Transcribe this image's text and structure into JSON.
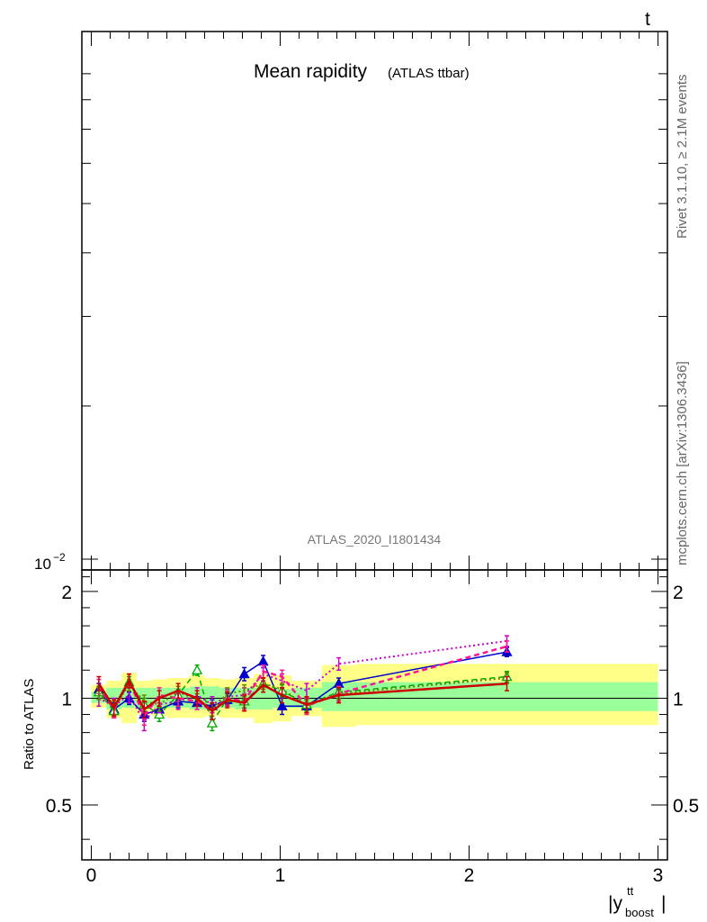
{
  "figure": {
    "title_main": "Mean rapidity",
    "title_sub": "(ATLAS ttbar)",
    "corner_label": "t",
    "watermark": "ATLAS_2020_I1801434",
    "side_text_top": "Rivet 3.1.10, ≥ 2.1M events",
    "side_text_bottom": "mcplots.cern.ch [arXiv:1306.3436]",
    "main_y_tick": "10",
    "main_y_tick_exp": "−2"
  },
  "chart_data": [
    {
      "panel": "main",
      "type": "line",
      "y_scale": "log",
      "x_range": [
        -0.05,
        3.05
      ],
      "y_ticks": [
        0.01
      ],
      "series": []
    },
    {
      "panel": "ratio",
      "type": "line",
      "ylabel": "Ratio to ATLAS",
      "xlabel": "|y",
      "xlabel_sup": "tt",
      "xlabel_sub": "boost",
      "xlabel_close": "|",
      "x_range": [
        -0.05,
        3.05
      ],
      "y_range": [
        0.35,
        2.3
      ],
      "x_ticks": [
        0,
        1,
        2,
        3
      ],
      "x_tick_labels": [
        "0",
        "1",
        "2",
        "3"
      ],
      "y_ticks": [
        0.5,
        1,
        2
      ],
      "y_tick_labels": [
        "0.5",
        "1",
        "2"
      ],
      "bin_edges": [
        0,
        0.08,
        0.16,
        0.24,
        0.32,
        0.4,
        0.52,
        0.6,
        0.68,
        0.76,
        0.86,
        0.96,
        1.06,
        1.22,
        1.4,
        3.0
      ],
      "band_inner": [
        [
          0.97,
          1.04
        ],
        [
          0.93,
          1.07
        ],
        [
          0.94,
          1.07
        ],
        [
          0.94,
          1.07
        ],
        [
          0.94,
          1.07
        ],
        [
          0.94,
          1.07
        ],
        [
          0.93,
          1.08
        ],
        [
          0.93,
          1.08
        ],
        [
          0.94,
          1.07
        ],
        [
          0.93,
          1.07
        ],
        [
          0.93,
          1.07
        ],
        [
          0.94,
          1.06
        ],
        [
          0.94,
          1.07
        ],
        [
          0.92,
          1.11
        ],
        [
          0.92,
          1.11
        ]
      ],
      "band_outer": [
        [
          0.94,
          1.09
        ],
        [
          0.88,
          1.12
        ],
        [
          0.85,
          1.18
        ],
        [
          0.9,
          1.12
        ],
        [
          0.89,
          1.13
        ],
        [
          0.88,
          1.14
        ],
        [
          0.88,
          1.16
        ],
        [
          0.89,
          1.14
        ],
        [
          0.88,
          1.13
        ],
        [
          0.88,
          1.14
        ],
        [
          0.85,
          1.17
        ],
        [
          0.86,
          1.16
        ],
        [
          0.89,
          1.12
        ],
        [
          0.83,
          1.24
        ],
        [
          0.84,
          1.25
        ]
      ],
      "x_points": [
        0.04,
        0.12,
        0.2,
        0.28,
        0.36,
        0.46,
        0.56,
        0.64,
        0.72,
        0.81,
        0.91,
        1.01,
        1.14,
        1.31,
        2.2
      ],
      "series": [
        {
          "color": "#0000cc",
          "dash": "none",
          "width": 1.5,
          "marker": "triangle-filled",
          "values": [
            1.06,
            0.93,
            1.0,
            0.9,
            0.93,
            0.98,
            0.97,
            0.95,
            0.99,
            1.17,
            1.27,
            0.95,
            0.95,
            1.1,
            1.35
          ],
          "errors": [
            0.04,
            0.04,
            0.04,
            0.04,
            0.04,
            0.04,
            0.04,
            0.04,
            0.04,
            0.05,
            0.05,
            0.05,
            0.04,
            0.04,
            0.04
          ]
        },
        {
          "color": "#00aa00",
          "dash": "6,4",
          "width": 1.5,
          "marker": "triangle-open",
          "values": [
            1.04,
            0.92,
            1.11,
            0.96,
            0.9,
            1.02,
            1.2,
            0.85,
            1.0,
            0.98,
            1.1,
            1.05,
            0.96,
            1.04,
            1.15
          ],
          "errors": [
            0.04,
            0.04,
            0.04,
            0.04,
            0.04,
            0.04,
            0.04,
            0.04,
            0.04,
            0.04,
            0.04,
            0.04,
            0.04,
            0.04,
            0.04
          ]
        },
        {
          "color": "#cc00cc",
          "dash": "2,3",
          "width": 2.0,
          "marker": "none",
          "values": [
            1.0,
            0.95,
            1.02,
            0.86,
            0.96,
            0.98,
            1.02,
            0.96,
            1.01,
            1.02,
            1.17,
            1.12,
            1.05,
            1.25,
            1.45
          ],
          "errors": [
            0.05,
            0.05,
            0.05,
            0.05,
            0.05,
            0.05,
            0.05,
            0.05,
            0.05,
            0.05,
            0.05,
            0.05,
            0.05,
            0.05,
            0.05
          ]
        },
        {
          "color": "#ff1493",
          "dash": "6,4",
          "width": 2.5,
          "marker": "none",
          "values": [
            1.08,
            0.93,
            1.12,
            0.89,
            1.02,
            1.0,
            0.98,
            0.92,
            1.0,
            0.98,
            1.19,
            1.15,
            0.95,
            1.03,
            1.4
          ],
          "errors": [
            0.05,
            0.05,
            0.05,
            0.05,
            0.05,
            0.05,
            0.05,
            0.05,
            0.05,
            0.05,
            0.05,
            0.05,
            0.05,
            0.05,
            0.05
          ]
        },
        {
          "color": "#668800",
          "dash": "2,3",
          "width": 2.0,
          "marker": "none",
          "values": [
            1.03,
            0.94,
            1.09,
            0.98,
            0.96,
            1.04,
            0.99,
            0.93,
            1.03,
            1.05,
            1.1,
            1.06,
            0.95,
            1.03,
            1.14
          ],
          "errors": [
            0.04,
            0.04,
            0.04,
            0.04,
            0.04,
            0.04,
            0.04,
            0.04,
            0.04,
            0.04,
            0.04,
            0.04,
            0.04,
            0.04,
            0.04
          ]
        },
        {
          "color": "#cc0000",
          "dash": "none",
          "width": 2.5,
          "marker": "none",
          "values": [
            1.1,
            0.94,
            1.12,
            0.93,
            1.0,
            1.05,
            1.0,
            0.92,
            0.99,
            0.97,
            1.09,
            1.02,
            0.96,
            1.02,
            1.1
          ],
          "errors": [
            0.05,
            0.05,
            0.05,
            0.05,
            0.05,
            0.05,
            0.05,
            0.05,
            0.05,
            0.05,
            0.05,
            0.05,
            0.05,
            0.05,
            0.05
          ]
        }
      ]
    }
  ]
}
